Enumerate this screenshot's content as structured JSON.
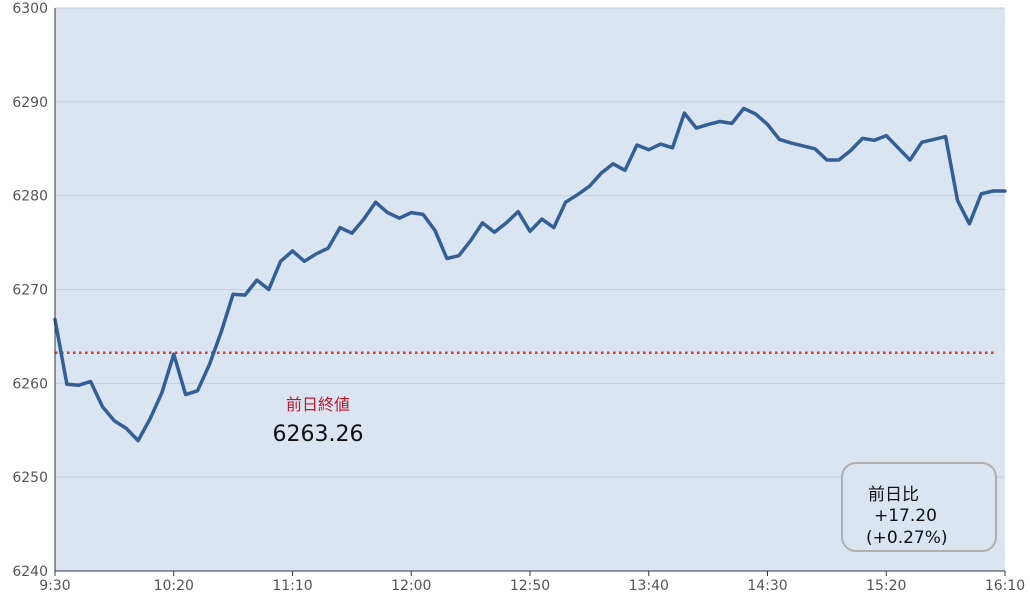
{
  "chart_data": {
    "type": "line",
    "title": "",
    "xlabel": "",
    "ylabel": "",
    "ylim": [
      6240,
      6300
    ],
    "y_ticks": [
      "6240",
      "6250",
      "6260",
      "6270",
      "6280",
      "6290",
      "6300"
    ],
    "x_ticks": [
      "9:30",
      "10:20",
      "11:10",
      "12:00",
      "12:50",
      "13:40",
      "14:30",
      "15:20",
      "16:10"
    ],
    "x_range_minutes": [
      0,
      400
    ],
    "grid": true,
    "reference_line": {
      "value": 6263.26,
      "label": "前日終値",
      "value_text": "6263.26",
      "color": "#d03b3b"
    },
    "change_box": {
      "label": "前日比",
      "change": "+17.20",
      "percent": "(+0.27%)"
    },
    "colors": {
      "line": "#335f97",
      "plot_background": "#dbe4f1",
      "label": "#c0192e"
    },
    "series": [
      {
        "x_minutes": [
          0,
          5,
          10,
          15,
          20,
          25,
          30,
          35,
          40,
          45,
          50,
          55,
          60,
          65,
          70,
          75,
          80,
          85,
          90,
          95,
          100,
          105,
          110,
          115,
          120,
          125,
          130,
          135,
          140,
          145,
          150,
          155,
          160,
          165,
          170,
          175,
          180,
          185,
          190,
          195,
          200,
          205,
          210,
          215,
          220,
          225,
          230,
          235,
          240,
          245,
          250,
          255,
          260,
          265,
          270,
          275,
          280,
          285,
          290,
          295,
          300,
          305,
          310,
          315,
          320,
          325,
          330,
          335,
          340,
          345,
          350,
          355,
          360,
          365,
          370,
          375,
          380,
          385,
          390,
          395,
          400
        ],
        "values": [
          6266.8,
          6259.9,
          6259.8,
          6260.2,
          6257.5,
          6256.0,
          6255.2,
          6253.9,
          6256.2,
          6259.0,
          6263.1,
          6258.8,
          6259.2,
          6262.0,
          6265.5,
          6269.5,
          6269.4,
          6271.0,
          6270.0,
          6273.0,
          6274.1,
          6273.0,
          6273.8,
          6274.4,
          6276.6,
          6276.0,
          6277.5,
          6279.3,
          6278.2,
          6277.6,
          6278.2,
          6278.0,
          6276.3,
          6273.3,
          6273.6,
          6275.2,
          6277.1,
          6276.1,
          6277.1,
          6278.3,
          6276.2,
          6277.5,
          6276.6,
          6279.3,
          6280.1,
          6281.0,
          6282.4,
          6283.4,
          6282.7,
          6285.4,
          6284.9,
          6285.5,
          6285.1,
          6288.8,
          6287.2,
          6287.6,
          6287.9,
          6287.7,
          6289.3,
          6288.7,
          6287.6,
          6286.0,
          6285.6,
          6285.3,
          6285.0,
          6283.8,
          6283.8,
          6284.8,
          6286.1,
          6285.9,
          6286.4,
          6285.1,
          6283.8,
          6285.7,
          6286.0,
          6286.3,
          6279.5,
          6277.0,
          6280.2,
          6280.5,
          6280.5
        ]
      }
    ]
  }
}
